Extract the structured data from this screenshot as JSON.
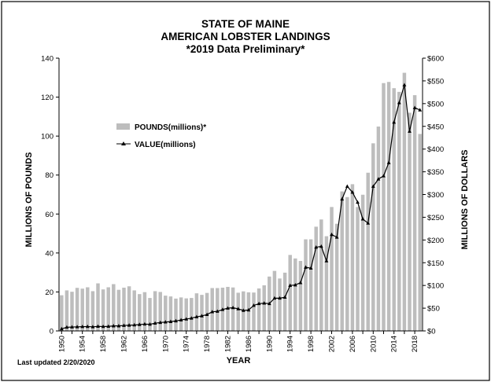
{
  "chart_data": {
    "type": "bar",
    "title_lines": [
      "STATE OF MAINE",
      "AMERICAN LOBSTER LANDINGS",
      "*2019 Data Preliminary*"
    ],
    "xlabel": "YEAR",
    "ylabel": "MILLIONS OF POUNDS",
    "y2label": "MILLIONS OF DOLLARS",
    "footnote": "Last updated 2/20/2020",
    "ylim": [
      0,
      140
    ],
    "yticks": [
      0,
      20,
      40,
      60,
      80,
      100,
      120,
      140
    ],
    "ytick_labels": [
      "0",
      "20",
      "40",
      "60",
      "80",
      "100",
      "120",
      "140"
    ],
    "y2lim": [
      0,
      600
    ],
    "y2ticks": [
      0,
      50,
      100,
      150,
      200,
      250,
      300,
      350,
      400,
      450,
      500,
      550,
      600
    ],
    "y2tick_labels": [
      "$0",
      "$50",
      "$100",
      "$150",
      "$200",
      "$250",
      "$300",
      "$350",
      "$400",
      "$450",
      "$500",
      "$550",
      "$600"
    ],
    "xtick_labels": [
      "1950",
      "1954",
      "1958",
      "1962",
      "1966",
      "1970",
      "1974",
      "1978",
      "1982",
      "1986",
      "1990",
      "1994",
      "1998",
      "2002",
      "2006",
      "2010",
      "2014",
      "2018"
    ],
    "grid": false,
    "legend_placement": "upper-left",
    "categories": [
      1950,
      1951,
      1952,
      1953,
      1954,
      1955,
      1956,
      1957,
      1958,
      1959,
      1960,
      1961,
      1962,
      1963,
      1964,
      1965,
      1966,
      1967,
      1968,
      1969,
      1970,
      1971,
      1972,
      1973,
      1974,
      1975,
      1976,
      1977,
      1978,
      1979,
      1980,
      1981,
      1982,
      1983,
      1984,
      1985,
      1986,
      1987,
      1988,
      1989,
      1990,
      1991,
      1992,
      1993,
      1994,
      1995,
      1996,
      1997,
      1998,
      1999,
      2000,
      2001,
      2002,
      2003,
      2004,
      2005,
      2006,
      2007,
      2008,
      2009,
      2010,
      2011,
      2012,
      2013,
      2014,
      2015,
      2016,
      2017,
      2018,
      2019
    ],
    "series": [
      {
        "name": "POUNDS(millions)*",
        "kind": "bar",
        "axis": "left",
        "color": "#bdbdbd",
        "values": [
          18.3,
          20.8,
          20.1,
          22.1,
          21.7,
          22.4,
          20.4,
          24.4,
          21.3,
          22.4,
          24.0,
          21.1,
          22.2,
          22.9,
          20.8,
          18.9,
          19.9,
          16.9,
          20.4,
          20.0,
          18.1,
          17.7,
          16.6,
          17.2,
          16.7,
          16.9,
          19.3,
          18.5,
          19.5,
          22.0,
          22.0,
          22.2,
          22.6,
          22.3,
          19.6,
          20.3,
          19.8,
          19.7,
          21.8,
          23.4,
          27.9,
          30.8,
          26.9,
          29.9,
          39.0,
          37.2,
          35.9,
          47.0,
          47.0,
          53.5,
          57.2,
          48.6,
          63.6,
          55.0,
          71.6,
          68.7,
          75.3,
          63.6,
          69.9,
          81.2,
          96.3,
          104.9,
          127.2,
          127.8,
          124.6,
          122.7,
          132.5,
          112.0,
          121.0,
          101.1
        ]
      },
      {
        "name": "VALUE(millions)",
        "kind": "line",
        "axis": "right",
        "color": "#000000",
        "values": [
          4.5,
          8.0,
          8.5,
          9.0,
          9.3,
          9.6,
          9.0,
          10.0,
          9.5,
          10.0,
          11.0,
          11.0,
          12.0,
          12.5,
          13.0,
          14.0,
          15.0,
          14.5,
          17.0,
          18.5,
          19.5,
          20.5,
          22.0,
          24.0,
          26.0,
          28.0,
          31.0,
          33.0,
          36.0,
          42.0,
          43.0,
          47.0,
          50.0,
          51.0,
          48.5,
          45.0,
          46.0,
          56.0,
          60.0,
          61.0,
          60.0,
          72.0,
          72.0,
          74.0,
          100.0,
          101.0,
          106.0,
          140.0,
          138.0,
          184.0,
          186.0,
          154.0,
          212.0,
          206.0,
          290.0,
          318.0,
          305.0,
          283.0,
          246.0,
          237.0,
          318.0,
          334.0,
          341.0,
          370.0,
          459.0,
          502.0,
          541.0,
          439.0,
          491.0,
          486.0
        ]
      }
    ]
  }
}
